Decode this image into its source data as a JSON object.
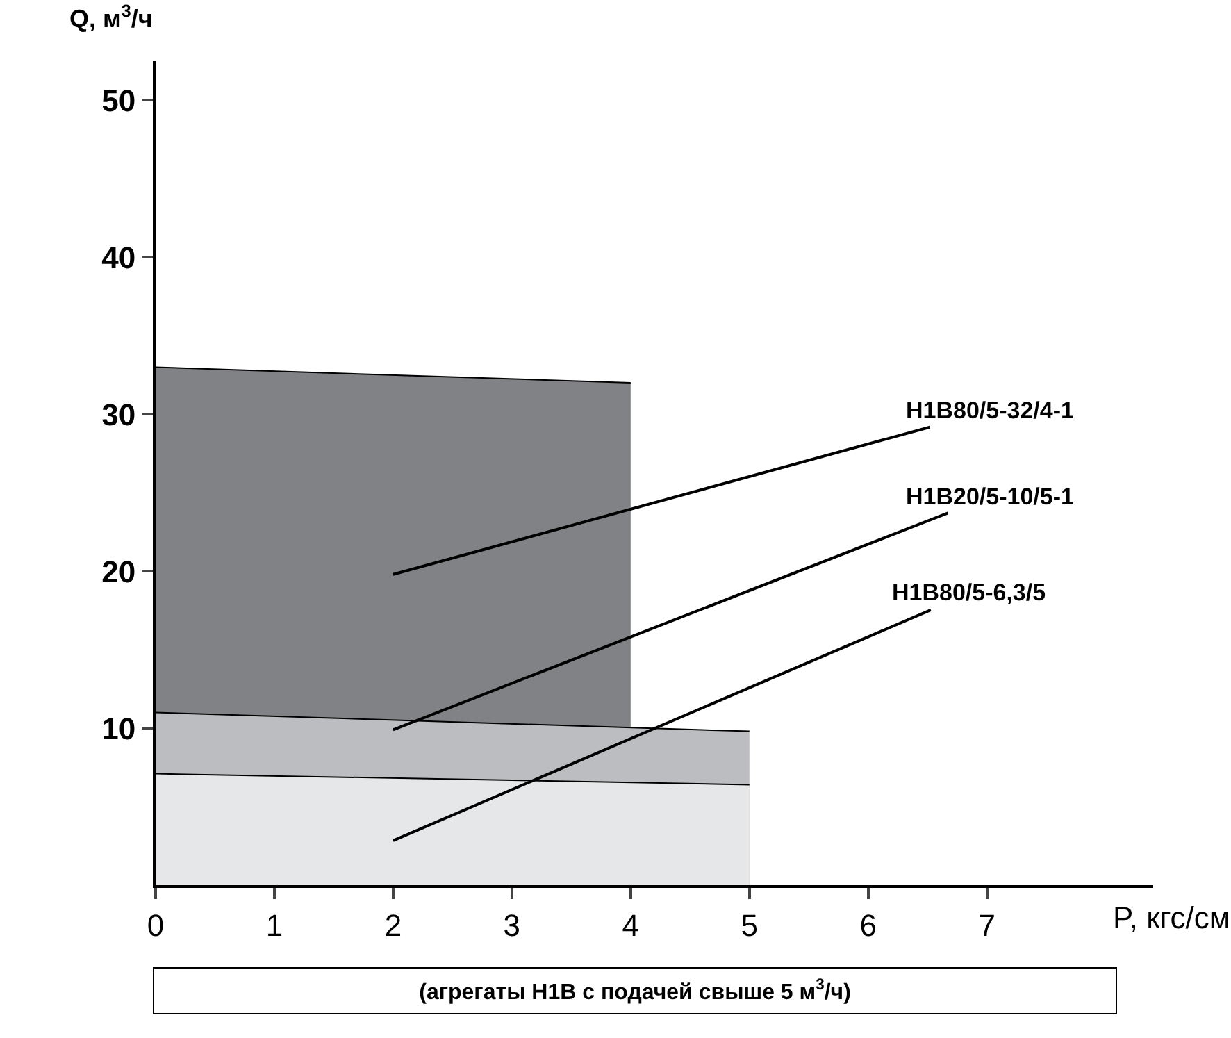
{
  "chart_data": {
    "type": "area",
    "xlabel": "P, кгс/см",
    "ylabel": "Q, м$^{3}$/ч",
    "xlim": [
      0,
      8.4
    ],
    "xticks": [
      0,
      1,
      2,
      3,
      4,
      5,
      6,
      7
    ],
    "ylim": [
      0,
      52.5
    ],
    "yticks": [
      10,
      20,
      30,
      40,
      50
    ],
    "series": [
      {
        "name": "Н1В80/5-32/4-1",
        "x": [
          0,
          4
        ],
        "values": [
          33,
          32
        ],
        "color": "#808285"
      },
      {
        "name": "Н1В20/5-10/5-1",
        "x": [
          0,
          5
        ],
        "values": [
          11,
          9.8
        ],
        "color": "#bcbdc0"
      },
      {
        "name": "Н1В80/5-6,3/5",
        "x": [
          0,
          5
        ],
        "values": [
          7.1,
          6.4
        ],
        "color": "#e6e7e8"
      }
    ],
    "annotations": [
      "(агрегаты Н1В с подачей свыше 5 м$^{3}$/ч)"
    ],
    "grid": false
  }
}
